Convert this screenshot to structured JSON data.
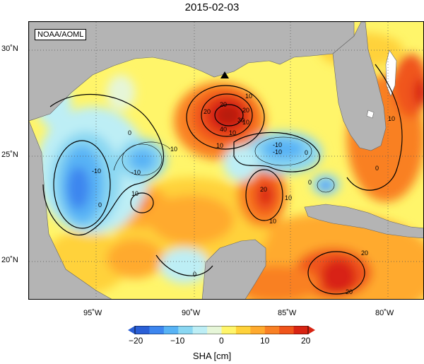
{
  "title": "2015-02-03",
  "credit": "NOAA/AOML",
  "lat_labels": [
    "30˚N",
    "25˚N",
    "20˚N"
  ],
  "lon_labels": [
    "95˚W",
    "90˚W",
    "85˚W",
    "80˚W"
  ],
  "colorbar": {
    "ticks": [
      "−20",
      "−10",
      "0",
      "10",
      "20"
    ],
    "label": "SHA [cm]",
    "colors": [
      "#2a5fd6",
      "#3d86ef",
      "#58b3f5",
      "#8ad7f2",
      "#bdeef5",
      "#e6f6d8",
      "#fff56a",
      "#ffd23a",
      "#ffaa2e",
      "#f98024",
      "#f0541a",
      "#d82413"
    ]
  },
  "contour_labels": [
    "10",
    "20",
    "10",
    "0",
    "-10",
    "10",
    "0",
    "-10",
    "-10",
    "10",
    "0",
    "10",
    "0",
    "20",
    "10",
    "20",
    "0",
    "10",
    "0",
    "-10",
    "10",
    "20",
    "10",
    "40",
    "20",
    "30",
    "20"
  ],
  "marker": "triangle"
}
